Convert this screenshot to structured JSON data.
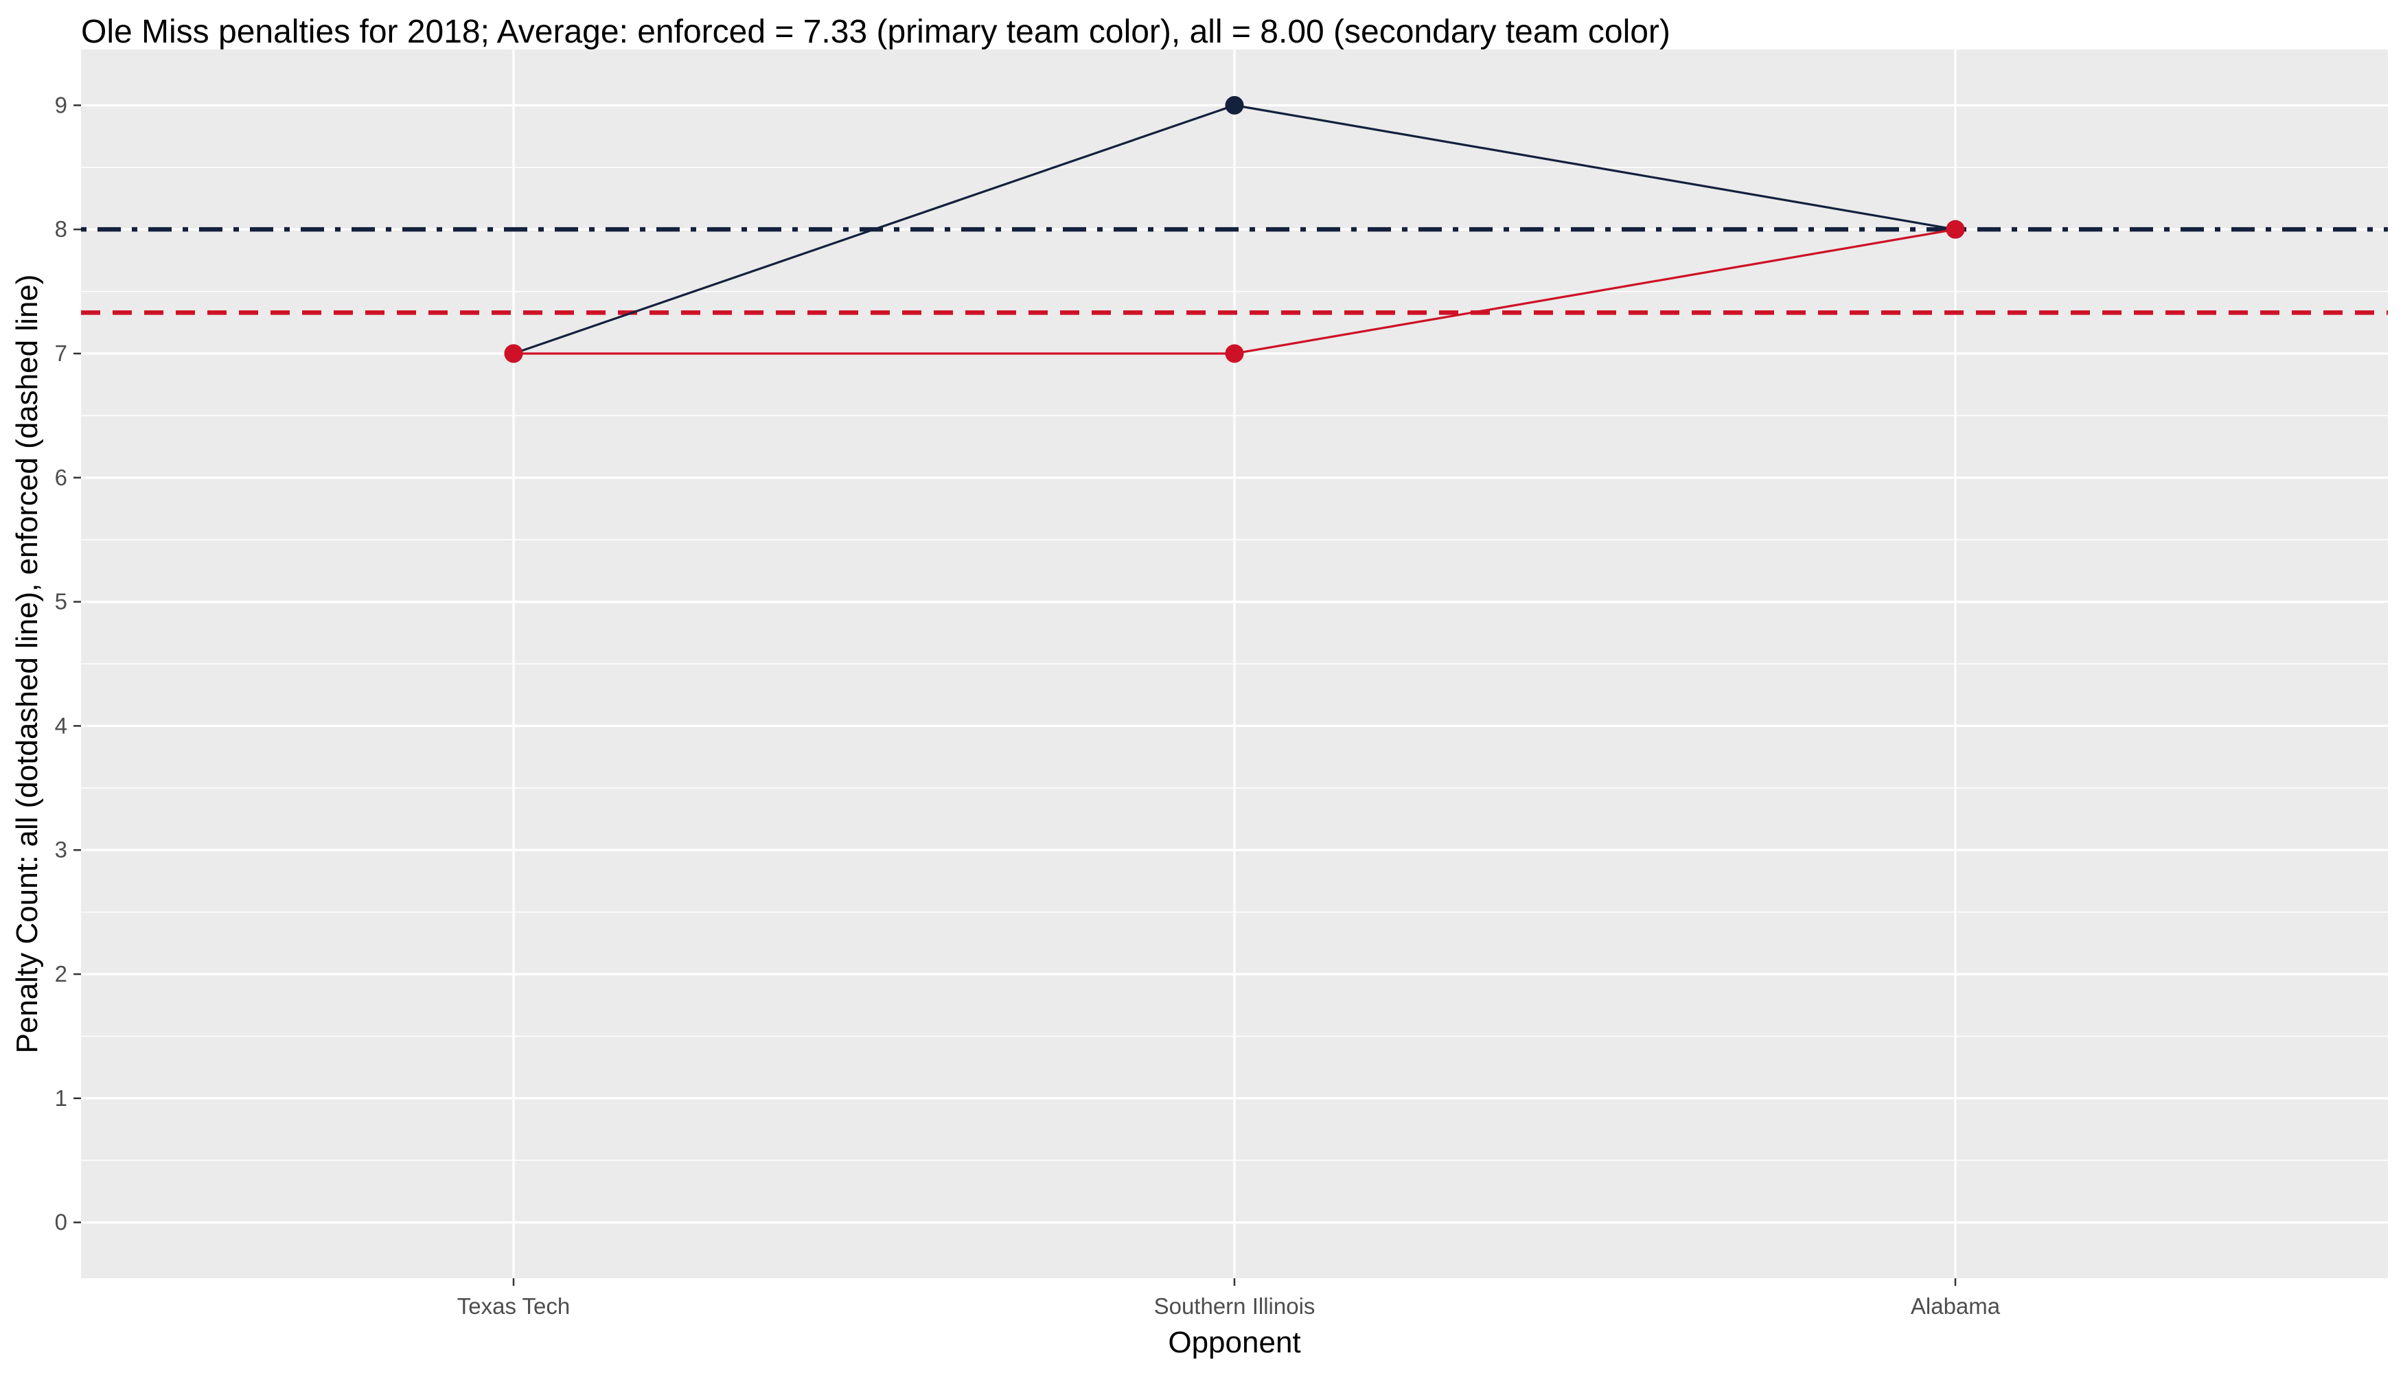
{
  "chart_data": {
    "type": "line",
    "title": "Ole Miss penalties for 2018; Average: enforced = 7.33 (primary team color), all = 8.00 (secondary team color)",
    "xlabel": "Opponent",
    "ylabel": "Penalty Count: all (dotdashed line), enforced (dashed line)",
    "categories": [
      "Texas Tech",
      "Southern Illinois",
      "Alabama"
    ],
    "y_ticks": [
      0,
      1,
      2,
      3,
      4,
      5,
      6,
      7,
      8,
      9
    ],
    "ylim": [
      -0.45,
      9.45
    ],
    "grid": true,
    "series": [
      {
        "key": "all",
        "values": [
          7,
          9,
          8
        ],
        "color": "#14213D"
      },
      {
        "key": "enforced",
        "values": [
          7,
          7,
          8
        ],
        "color": "#CE1126"
      }
    ],
    "reference_lines": [
      {
        "key": "all_average",
        "value": 8.0,
        "style": "dotdash",
        "color": "#14213D"
      },
      {
        "key": "enforced_average",
        "value": 7.33,
        "style": "dashed",
        "color": "#CE1126"
      }
    ]
  },
  "colors": {
    "panel_background": "#EBEBEB",
    "grid": "#FFFFFF",
    "primary": "#CE1126",
    "secondary": "#14213D"
  }
}
